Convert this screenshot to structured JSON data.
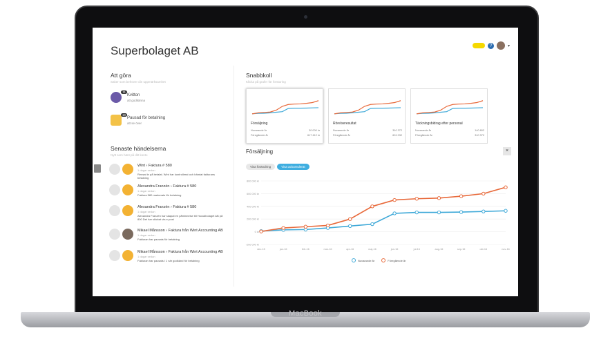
{
  "device": {
    "brand": "MacBook"
  },
  "header": {
    "title": "Superbolaget AB"
  },
  "todo": {
    "title": "Att göra",
    "subtitle": "Saker som behöver din uppmärksamhet",
    "items": [
      {
        "label": "Kvitton",
        "sub": "att godkänna",
        "count": "11",
        "color": "#6b5aa8"
      },
      {
        "label": "Pausad för betalning",
        "sub": "att se över",
        "count": "19",
        "color": "#f3c247"
      }
    ]
  },
  "events": {
    "title": "Senaste händelserna",
    "subtitle": "Nytt som hänt på ditt konto",
    "items": [
      {
        "title": "Wint › Faktura # 580",
        "time": "1 dagar sedan",
        "desc": "Rensat in på betalat. Wint har kontrollerat och hämtat fakturans betalning"
      },
      {
        "title": "Alexandra Franzén › Faktura # 580",
        "time": "1 dagar sedan",
        "desc": "Faktura 580 markerats för betalning"
      },
      {
        "title": "Alexandra Franzén › Faktura # 580",
        "time": "1 dagar sedan",
        "desc": "Alexandra Franzén har skapat en påminnelse till Huvudbolaget AB på 800 Det har skickat via e-post"
      },
      {
        "title": "Mikael Månsson › Faktura från Wint Accounting AB",
        "time": "1 dagar sedan",
        "desc": "Fakturan har pausats för betalning"
      },
      {
        "title": "Mikael Månsson › Faktura från Wint Accounting AB",
        "time": "1 dagar sedan",
        "desc": "Fakturan har pausats i 1 när godkänd för betalning"
      }
    ]
  },
  "quick": {
    "title": "Snabbkoll",
    "subtitle": "Klicka på grafer för förstoring",
    "cards": [
      {
        "name": "Försäljning",
        "row1_label": "Nuvarande år",
        "row1_value": "30 000 kr",
        "row2_label": "Föregående år",
        "row2_value": "617 412 kr"
      },
      {
        "name": "Rörelseresultat",
        "row1_label": "Nuvarande år",
        "row1_value": "310 372",
        "row2_label": "Föregående år",
        "row2_value": "601 032"
      },
      {
        "name": "Täckningsbidrag efter personal",
        "row1_label": "Nuvarande år",
        "row1_value": "140 802",
        "row2_label": "Föregående år",
        "row2_value": "310 372"
      }
    ]
  },
  "sales": {
    "title": "Försäljning",
    "close_label": "×",
    "toggle_change": "Visa förändring",
    "toggle_accum": "Visa ackumulerat"
  },
  "colors": {
    "current": "#3fa9d8",
    "previous": "#e8693a"
  },
  "chart_data": {
    "type": "line",
    "categories": [
      "dec-15",
      "jan-16",
      "feb-16",
      "mar-16",
      "apr-16",
      "maj-16",
      "jun-16",
      "jul-16",
      "aug-16",
      "sep-16",
      "okt-16",
      "nov-16"
    ],
    "ylim": [
      0,
      800000
    ],
    "yticks": [
      "800 000 kr",
      "600 000 kr",
      "400 000 kr",
      "200 000 kr",
      "0 kr",
      "-200 000 kr"
    ],
    "series": [
      {
        "name": "Nuvarande år",
        "color": "#3fa9d8",
        "values": [
          10000,
          30000,
          35000,
          60000,
          90000,
          120000,
          290000,
          305000,
          305000,
          310000,
          320000,
          330000
        ]
      },
      {
        "name": "Föregående år",
        "color": "#e8693a",
        "values": [
          5000,
          60000,
          80000,
          100000,
          200000,
          400000,
          500000,
          520000,
          530000,
          560000,
          600000,
          700000
        ]
      }
    ]
  }
}
